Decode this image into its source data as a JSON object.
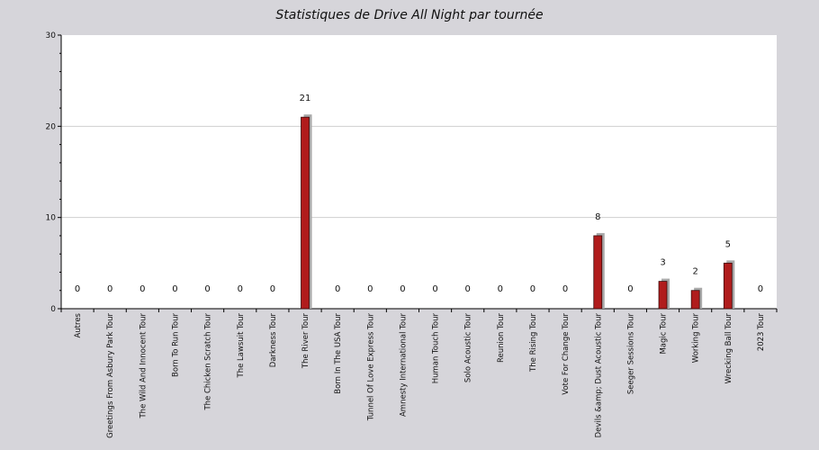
{
  "chart_data": {
    "type": "bar",
    "title": "Statistiques de Drive All Night par tournée",
    "xlabel": "",
    "ylabel": "",
    "ylim": [
      0,
      30
    ],
    "yticks": [
      0,
      10,
      20,
      30
    ],
    "grid": true,
    "categories": [
      "Autres",
      "Greetings From Asbury Park Tour",
      "The Wild And Innocent Tour",
      "Born To Run Tour",
      "The Chicken Scratch Tour",
      "The Lawsuit Tour",
      "Darkness Tour",
      "The River Tour",
      "Born In The USA Tour",
      "Tunnel Of Love Express Tour",
      "Amnesty International Tour",
      "Human Touch Tour",
      "Solo Acoustic Tour",
      "Reunion Tour",
      "The Rising Tour",
      "Vote For Change Tour",
      "Devils &amp; Dust Acoustic Tour",
      "Seeger Sessions Tour",
      "Magic Tour",
      "Working Tour",
      "Wrecking Ball Tour",
      "2023 Tour"
    ],
    "values": [
      0,
      0,
      0,
      0,
      0,
      0,
      0,
      21,
      0,
      0,
      0,
      0,
      0,
      0,
      0,
      0,
      8,
      0,
      3,
      2,
      5,
      0
    ],
    "colors": {
      "page_background": "#d6d5da",
      "plot_background": "#ffffff",
      "bar": "#b01c1c",
      "bar_edge": "#3a0a0a",
      "bar_shadow": "#a9a9a9",
      "grid": "#cfcfcf",
      "axis": "#000000"
    }
  }
}
